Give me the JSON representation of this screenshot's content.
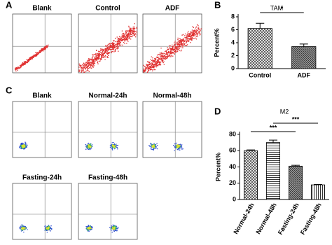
{
  "figure": {
    "panel_labels": [
      "A",
      "B",
      "C",
      "D"
    ],
    "flow_a": [
      "Blank",
      "Control",
      "ADF"
    ],
    "flow_c": [
      "Blank",
      "Normal-24h",
      "Normal-48h",
      "Fasting-24h",
      "Fasting-48h"
    ]
  },
  "chart_data": [
    {
      "type": "bar",
      "title": "TAM",
      "y_label": "Percent%",
      "categories": [
        "Control",
        "ADF"
      ],
      "values": [
        6.2,
        3.4
      ],
      "errors": [
        0.8,
        0.4
      ],
      "ylim": [
        0,
        8
      ],
      "yticks": [
        0,
        2,
        4,
        6,
        8
      ],
      "annotations": [
        "*"
      ]
    },
    {
      "type": "bar",
      "title": "M2",
      "y_label": "Percent%",
      "categories": [
        "Normal-24h",
        "Normal-48h",
        "Fasting-24h",
        "Fasting-48h"
      ],
      "values": [
        60,
        70,
        41,
        18
      ],
      "errors": [
        1,
        3,
        1,
        0.5
      ],
      "ylim": [
        0,
        80
      ],
      "yticks": [
        0,
        20,
        40,
        60,
        80
      ],
      "annotations": [
        "***",
        "***"
      ]
    }
  ]
}
